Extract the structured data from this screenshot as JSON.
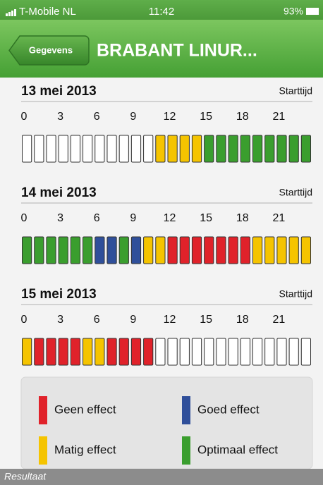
{
  "status_bar": {
    "carrier": "T-Mobile NL",
    "time": "11:42",
    "battery": "93%"
  },
  "nav_bar": {
    "back": "Gegevens",
    "title": "BRABANT LINUR..."
  },
  "hour_labels": [
    "0",
    "3",
    "6",
    "9",
    "12",
    "15",
    "18",
    "21"
  ],
  "days": [
    {
      "date": "13 mei 2013",
      "start_label": "Starttijd",
      "cells": [
        "#ffffff",
        "#ffffff",
        "#ffffff",
        "#ffffff",
        "#ffffff",
        "#ffffff",
        "#ffffff",
        "#ffffff",
        "#ffffff",
        "#ffffff",
        "#ffffff",
        "#f5c400",
        "#f5c400",
        "#f5c400",
        "#f5c400",
        "#3a9e2e",
        "#3a9e2e",
        "#3a9e2e",
        "#3a9e2e",
        "#3a9e2e",
        "#3a9e2e",
        "#3a9e2e",
        "#3a9e2e",
        "#3a9e2e"
      ]
    },
    {
      "date": "14 mei 2013",
      "start_label": "Starttijd",
      "cells": [
        "#3a9e2e",
        "#3a9e2e",
        "#3a9e2e",
        "#3a9e2e",
        "#3a9e2e",
        "#3a9e2e",
        "#2f4f9a",
        "#2f4f9a",
        "#3a9e2e",
        "#2f4f9a",
        "#f5c400",
        "#f5c400",
        "#e0222a",
        "#e0222a",
        "#e0222a",
        "#e0222a",
        "#e0222a",
        "#e0222a",
        "#e0222a",
        "#f5c400",
        "#f5c400",
        "#f5c400",
        "#f5c400",
        "#f5c400"
      ]
    },
    {
      "date": "15 mei 2013",
      "start_label": "Starttijd",
      "cells": [
        "#f5c400",
        "#e0222a",
        "#e0222a",
        "#e0222a",
        "#e0222a",
        "#f5c400",
        "#f5c400",
        "#e0222a",
        "#e0222a",
        "#e0222a",
        "#e0222a",
        "#ffffff",
        "#ffffff",
        "#ffffff",
        "#ffffff",
        "#ffffff",
        "#ffffff",
        "#ffffff",
        "#ffffff",
        "#ffffff",
        "#ffffff",
        "#ffffff",
        "#ffffff",
        "#ffffff"
      ]
    }
  ],
  "legend": [
    {
      "name": "Geen effect",
      "color": "#e0222a"
    },
    {
      "name": "Goed effect",
      "color": "#2f4f9a"
    },
    {
      "name": "Matig effect",
      "color": "#f5c400"
    },
    {
      "name": "Optimaal effect",
      "color": "#3a9e2e"
    }
  ],
  "caption": "Resultaat"
}
